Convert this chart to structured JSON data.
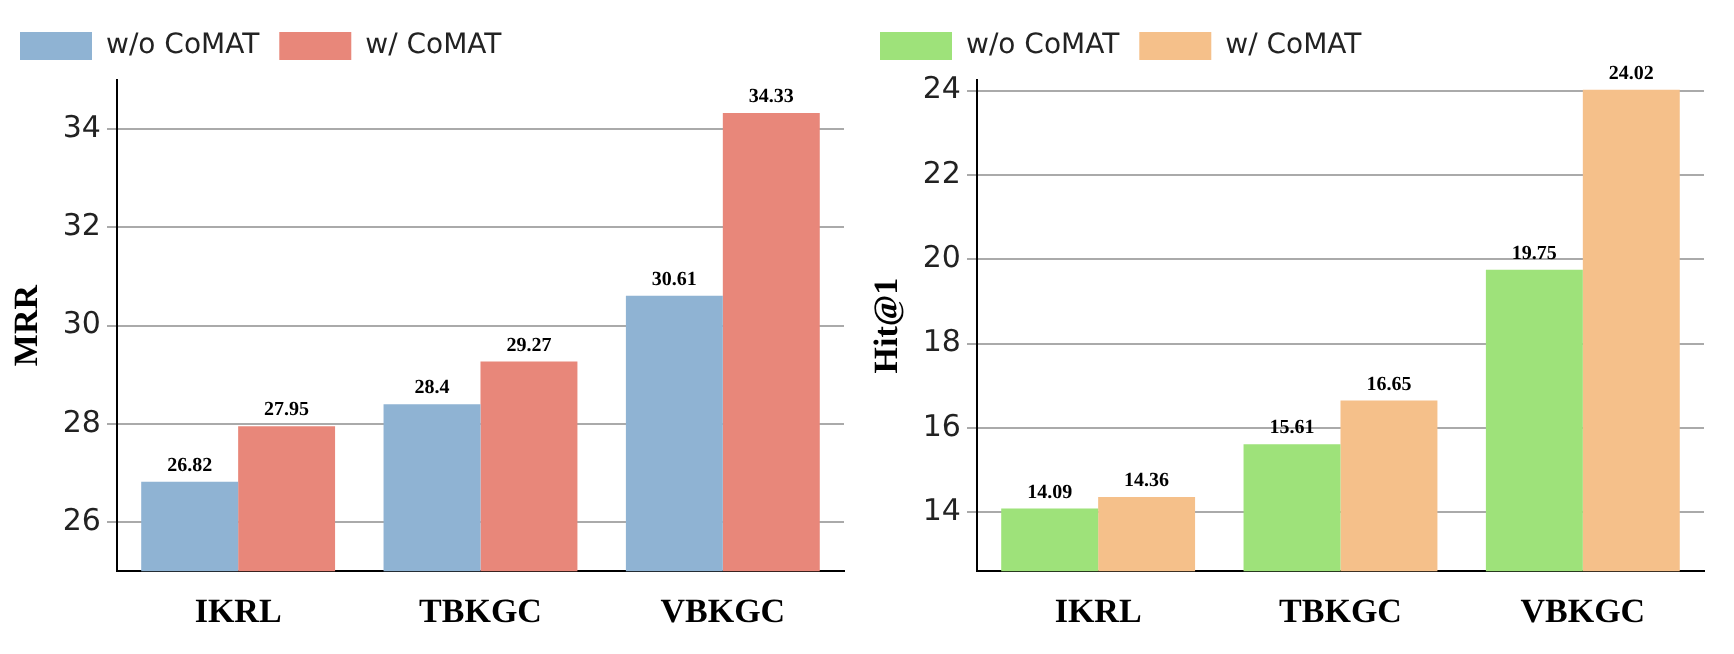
{
  "chart_data": [
    {
      "type": "bar",
      "ylabel": "MRR",
      "categories": [
        "IKRL",
        "TBKGC",
        "VBKGC"
      ],
      "series": [
        {
          "name": "w/o CoMAT",
          "color": "#8fb3d3",
          "values": [
            26.82,
            28.4,
            30.61
          ]
        },
        {
          "name": "w/ CoMAT",
          "color": "#e8877a",
          "values": [
            27.95,
            29.27,
            34.33
          ]
        }
      ],
      "ylim": [
        25,
        35
      ],
      "yticks": [
        26,
        28,
        30,
        32,
        34
      ],
      "grid": "y",
      "legend": "top left",
      "data_labels": true
    },
    {
      "type": "bar",
      "ylabel": "Hit@1",
      "categories": [
        "IKRL",
        "TBKGC",
        "VBKGC"
      ],
      "series": [
        {
          "name": "w/o CoMAT",
          "color": "#9ee27a",
          "values": [
            14.09,
            15.61,
            19.75
          ]
        },
        {
          "name": "w/ CoMAT",
          "color": "#f5c08a",
          "values": [
            14.36,
            16.65,
            24.02
          ]
        }
      ],
      "ylim": [
        12.6,
        24.25
      ],
      "yticks": [
        14,
        16,
        18,
        20,
        22,
        24
      ],
      "grid": "y",
      "legend": "top left",
      "data_labels": true
    }
  ]
}
